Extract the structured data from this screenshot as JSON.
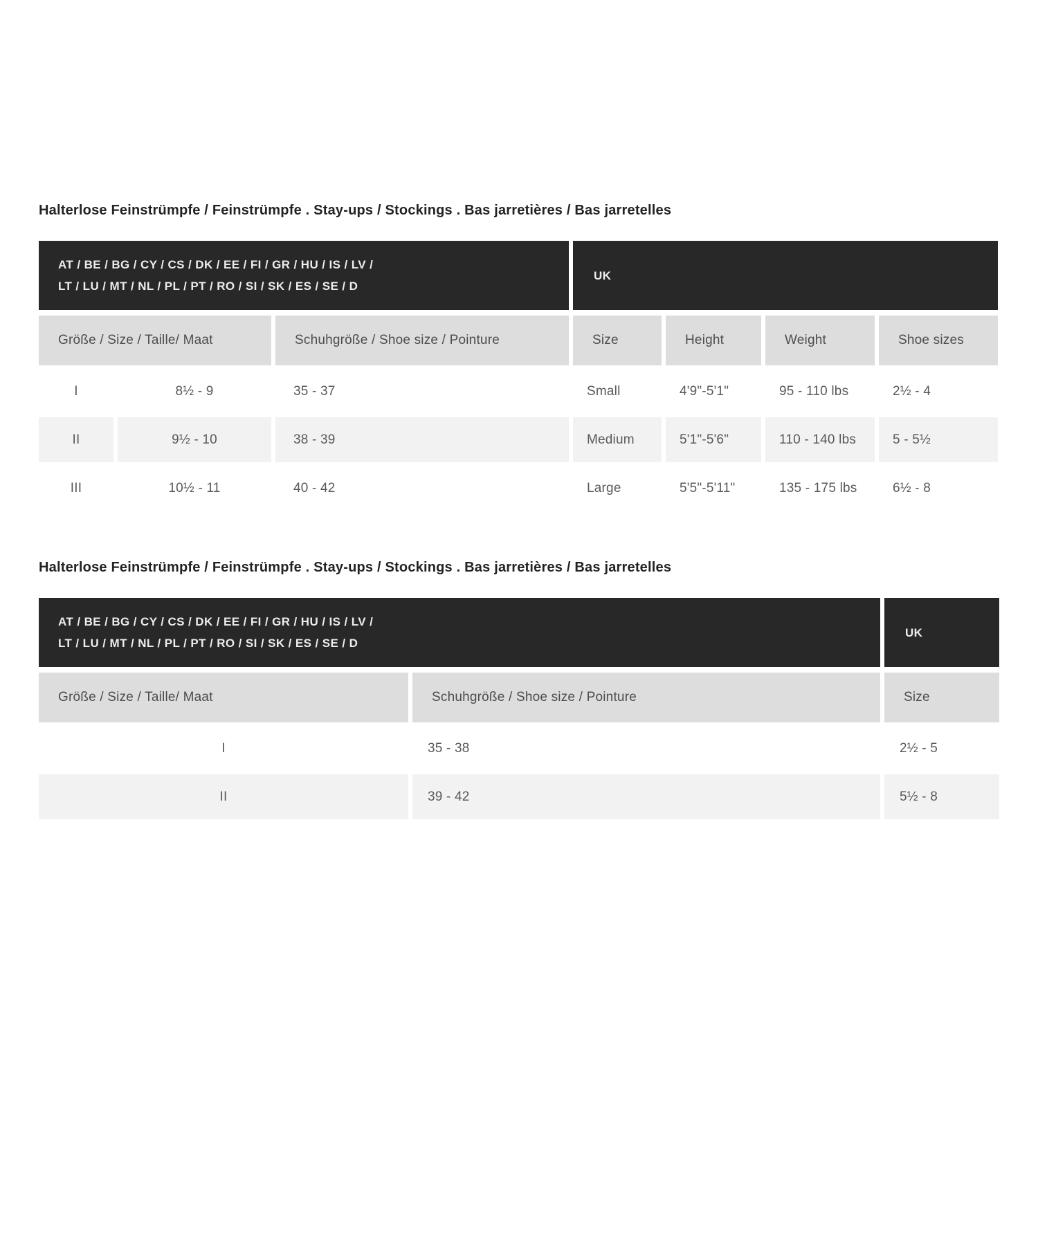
{
  "colors": {
    "header_black": "#282828",
    "header_gray": "#dddddd",
    "row_stripe": "#f2f2f2",
    "title_text": "#232323",
    "data_text": "#58595a"
  },
  "section1": {
    "title": "Halterlose Feinstrümpfe / Feinstrümpfe . Stay-ups / Stockings . Bas jarretières / Bas jarretelles",
    "eu_header_line1": "AT / BE / BG / CY / CS / DK / EE / FI / GR / HU / IS / LV /",
    "eu_header_line2": "LT / LU / MT / NL / PL / PT / RO / SI / SK / ES / SE / D",
    "uk_header": "UK",
    "columns": {
      "size_label": "Größe / Size / Taille/ Maat",
      "shoe_label": "Schuhgröße / Shoe size / Pointure",
      "uk_size": "Size",
      "uk_height": "Height",
      "uk_weight": "Weight",
      "uk_shoe": "Shoe sizes"
    },
    "rows": [
      {
        "num": "I",
        "groesse": "8½ - 9",
        "schuh": "35 - 37",
        "size": "Small",
        "height": "4'9\"-5'1\"",
        "weight": "95 - 110 lbs",
        "shoe": "2½ - 4"
      },
      {
        "num": "II",
        "groesse": "9½ - 10",
        "schuh": "38 - 39",
        "size": "Medium",
        "height": "5'1\"-5'6\"",
        "weight": "110 - 140 lbs",
        "shoe": "5 - 5½"
      },
      {
        "num": "III",
        "groesse": "10½ - 11",
        "schuh": "40 - 42",
        "size": "Large",
        "height": "5'5\"-5'11\"",
        "weight": "135 - 175 lbs",
        "shoe": "6½ - 8"
      }
    ]
  },
  "section2": {
    "title": "Halterlose Feinstrümpfe / Feinstrümpfe . Stay-ups / Stockings . Bas jarretières / Bas jarretelles",
    "eu_header_line1": "AT / BE / BG / CY / CS / DK / EE / FI / GR / HU / IS / LV /",
    "eu_header_line2": "LT / LU / MT / NL / PL / PT / RO / SI / SK / ES / SE / D",
    "uk_header": "UK",
    "columns": {
      "size_label": "Größe / Size / Taille/ Maat",
      "shoe_label": "Schuhgröße / Shoe size / Pointure",
      "uk_size": "Size"
    },
    "rows": [
      {
        "num": "I",
        "schuh": "35 - 38",
        "uk": "2½ - 5"
      },
      {
        "num": "II",
        "schuh": "39 - 42",
        "uk": "5½ - 8"
      }
    ]
  }
}
